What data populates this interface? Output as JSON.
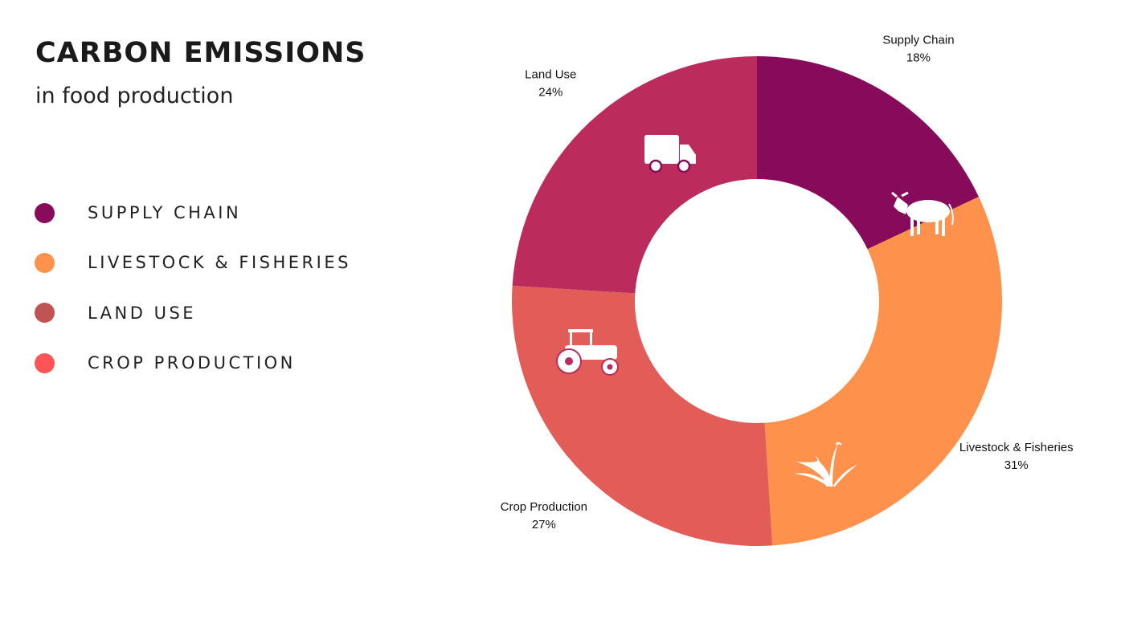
{
  "title": "CARBON EMISSIONS",
  "subtitle": "in food production",
  "legend": [
    {
      "label": "SUPPLY CHAIN",
      "color": "#8a0b5c"
    },
    {
      "label": "LIVESTOCK & FISHERIES",
      "color": "#fe914c"
    },
    {
      "label": "LAND USE",
      "color": "#c05454"
    },
    {
      "label": "CROP PRODUCTION",
      "color": "#fe5456"
    }
  ],
  "chart_data": {
    "type": "pie",
    "donut": true,
    "slices": [
      {
        "name": "Supply Chain",
        "value": 18,
        "label": "18%",
        "color": "#880a5b",
        "icon": "truck-icon"
      },
      {
        "name": "Livestock & Fisheries",
        "value": 31,
        "label": "31%",
        "color": "#fe914c",
        "icon": "cow-icon"
      },
      {
        "name": "Crop Production",
        "value": 27,
        "label": "27%",
        "color": "#e35d58",
        "icon": "plant-icon"
      },
      {
        "name": "Land Use",
        "value": 24,
        "label": "24%",
        "color": "#bb2c5c",
        "icon": "tractor-icon"
      }
    ]
  }
}
